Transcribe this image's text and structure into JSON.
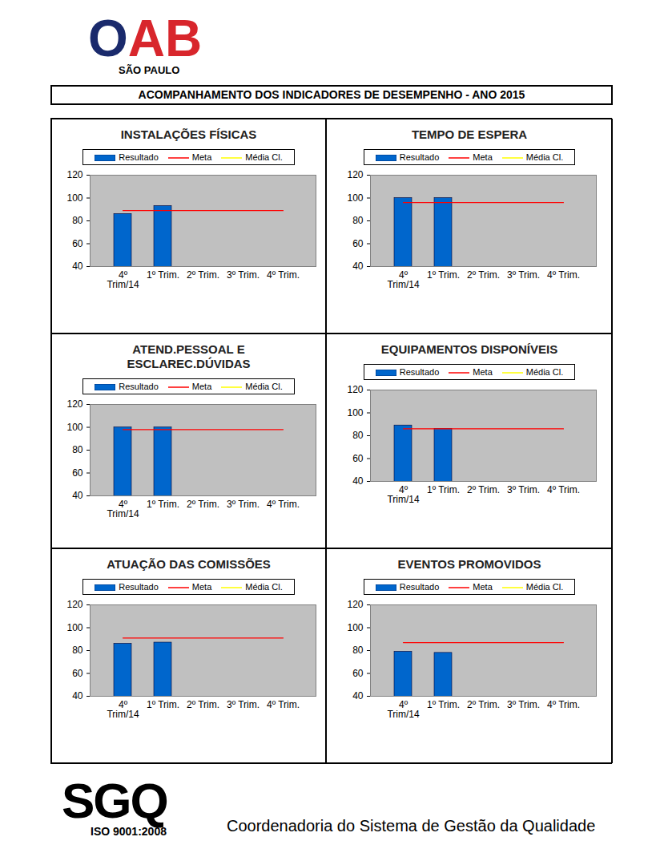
{
  "header": {
    "logo_text": "OAB",
    "logo_subtitle": "SÃO PAULO",
    "title": "ACOMPANHAMENTO DOS INDICADORES DE DESEMPENHO - ANO 2015"
  },
  "footer": {
    "logo_text": "SGQ",
    "logo_subtitle": "ISO 9001:2008",
    "text": "Coordenadoria do Sistema de Gestão da Qualidade"
  },
  "chart_data": [
    {
      "type": "bar",
      "title": "INSTALAÇÕES FÍSICAS",
      "legend": "top",
      "grid": false,
      "categories": [
        "4º Trim/14",
        "1º Trim.",
        "2º Trim.",
        "3º Trim.",
        "4º Trim."
      ],
      "series": [
        {
          "name": "Resultado",
          "type": "bar",
          "color": "#0066cc",
          "values": [
            86,
            93,
            null,
            null,
            null
          ]
        },
        {
          "name": "Meta",
          "type": "line",
          "color": "#ff0000",
          "values": [
            89,
            89,
            89,
            89,
            89
          ]
        },
        {
          "name": "Média Cl.",
          "type": "line",
          "color": "#ffff00",
          "values": [
            null,
            null,
            null,
            null,
            null
          ]
        }
      ],
      "ylim": [
        40,
        120
      ],
      "yticks": [
        40,
        60,
        80,
        100,
        120
      ]
    },
    {
      "type": "bar",
      "title": "TEMPO DE ESPERA",
      "legend": "top",
      "grid": false,
      "categories": [
        "4º Trim/14",
        "1º Trim.",
        "2º Trim.",
        "3º Trim.",
        "4º Trim."
      ],
      "series": [
        {
          "name": "Resultado",
          "type": "bar",
          "color": "#0066cc",
          "values": [
            100,
            100,
            null,
            null,
            null
          ]
        },
        {
          "name": "Meta",
          "type": "line",
          "color": "#ff0000",
          "values": [
            96,
            96,
            96,
            96,
            96
          ]
        },
        {
          "name": "Média Cl.",
          "type": "line",
          "color": "#ffff00",
          "values": [
            null,
            null,
            null,
            null,
            null
          ]
        }
      ],
      "ylim": [
        40,
        120
      ],
      "yticks": [
        40,
        60,
        80,
        100,
        120
      ]
    },
    {
      "type": "bar",
      "title": "ATEND.PESSOAL E\nESCLAREC.DÚVIDAS",
      "legend": "top",
      "grid": false,
      "categories": [
        "4º Trim/14",
        "1º Trim.",
        "2º Trim.",
        "3º Trim.",
        "4º Trim."
      ],
      "series": [
        {
          "name": "Resultado",
          "type": "bar",
          "color": "#0066cc",
          "values": [
            100,
            100,
            null,
            null,
            null
          ]
        },
        {
          "name": "Meta",
          "type": "line",
          "color": "#ff0000",
          "values": [
            98,
            98,
            98,
            98,
            98
          ]
        },
        {
          "name": "Média Cl.",
          "type": "line",
          "color": "#ffff00",
          "values": [
            null,
            null,
            null,
            null,
            null
          ]
        }
      ],
      "ylim": [
        40,
        120
      ],
      "yticks": [
        40,
        60,
        80,
        100,
        120
      ]
    },
    {
      "type": "bar",
      "title": "EQUIPAMENTOS DISPONÍVEIS",
      "legend": "top",
      "grid": false,
      "categories": [
        "4º Trim/14",
        "1º Trim.",
        "2º Trim.",
        "3º Trim.",
        "4º Trim."
      ],
      "series": [
        {
          "name": "Resultado",
          "type": "bar",
          "color": "#0066cc",
          "values": [
            89,
            86,
            null,
            null,
            null
          ]
        },
        {
          "name": "Meta",
          "type": "line",
          "color": "#ff0000",
          "values": [
            86,
            86,
            86,
            86,
            86
          ]
        },
        {
          "name": "Média Cl.",
          "type": "line",
          "color": "#ffff00",
          "values": [
            null,
            null,
            null,
            null,
            null
          ]
        }
      ],
      "ylim": [
        40,
        120
      ],
      "yticks": [
        40,
        60,
        80,
        100,
        120
      ]
    },
    {
      "type": "bar",
      "title": "ATUAÇÃO DAS COMISSÕES",
      "legend": "top",
      "grid": false,
      "categories": [
        "4º Trim/14",
        "1º Trim.",
        "2º Trim.",
        "3º Trim.",
        "4º Trim."
      ],
      "series": [
        {
          "name": "Resultado",
          "type": "bar",
          "color": "#0066cc",
          "values": [
            86,
            87,
            null,
            null,
            null
          ]
        },
        {
          "name": "Meta",
          "type": "line",
          "color": "#ff0000",
          "values": [
            91,
            91,
            91,
            91,
            91
          ]
        },
        {
          "name": "Média Cl.",
          "type": "line",
          "color": "#ffff00",
          "values": [
            null,
            null,
            null,
            null,
            null
          ]
        }
      ],
      "ylim": [
        40,
        120
      ],
      "yticks": [
        40,
        60,
        80,
        100,
        120
      ]
    },
    {
      "type": "bar",
      "title": "EVENTOS PROMOVIDOS",
      "legend": "top",
      "grid": false,
      "categories": [
        "4º Trim/14",
        "1º Trim.",
        "2º Trim.",
        "3º Trim.",
        "4º Trim."
      ],
      "series": [
        {
          "name": "Resultado",
          "type": "bar",
          "color": "#0066cc",
          "values": [
            79,
            78,
            null,
            null,
            null
          ]
        },
        {
          "name": "Meta",
          "type": "line",
          "color": "#ff0000",
          "values": [
            87,
            87,
            87,
            87,
            87
          ]
        },
        {
          "name": "Média Cl.",
          "type": "line",
          "color": "#ffff00",
          "values": [
            null,
            null,
            null,
            null,
            null
          ]
        }
      ],
      "ylim": [
        40,
        120
      ],
      "yticks": [
        40,
        60,
        80,
        100,
        120
      ]
    }
  ]
}
